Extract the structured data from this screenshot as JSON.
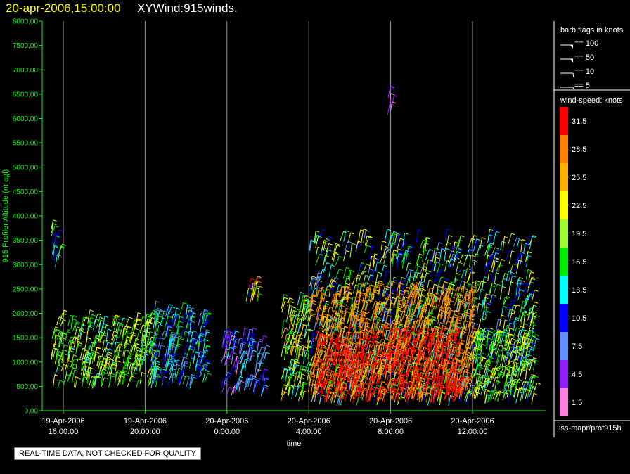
{
  "header": {
    "date": "20-apr-2006,15:00:00",
    "title": "XYWind:915winds."
  },
  "quality_notice": "REAL-TIME DATA, NOT CHECKED FOR QUALITY",
  "colors": {
    "background": "#000000",
    "axis": "#00ff00",
    "title_date": "#ffff00",
    "grid": "#9a9a9a"
  },
  "chart_data": {
    "type": "wind-barb time-height plot",
    "ylabel": "915 Profiler Altitude (m agl)",
    "xlabel": "time",
    "ylim": [
      0,
      8000
    ],
    "yticks": [
      "0.00",
      "500.00",
      "1000.00",
      "1500.00",
      "2000.00",
      "2500.00",
      "3000.00",
      "3500.00",
      "4000.00",
      "4500.00",
      "5000.00",
      "5500.00",
      "6000.00",
      "6500.00",
      "7000.00",
      "7500.00",
      "8000.00"
    ],
    "xlim_hours": [
      -6.5,
      25
    ],
    "xticks": [
      {
        "hours": -8,
        "date": "19-Apr-2006",
        "time": "16:00:00"
      },
      {
        "hours": -4,
        "date": "19-Apr-2006",
        "time": "20:00:00"
      },
      {
        "hours": 0,
        "date": "20-Apr-2006",
        "time": "0:00:00"
      },
      {
        "hours": 4,
        "date": "20-Apr-2006",
        "time": "4:00:00"
      },
      {
        "hours": 8,
        "date": "20-Apr-2006",
        "time": "8:00:00"
      },
      {
        "hours": 12,
        "date": "20-Apr-2006",
        "time": "12:00:00"
      }
    ],
    "barb_legend": {
      "title": "barb flags in knots",
      "entries": [
        {
          "label": "== 100",
          "knots": 100
        },
        {
          "label": "== 50",
          "knots": 50
        },
        {
          "label": "== 10",
          "knots": 10
        },
        {
          "label": "== 5",
          "knots": 5
        }
      ]
    },
    "speed_legend": {
      "title": "wind-speed: knots",
      "bins": [
        {
          "label": "31.5",
          "color": "#ff0000"
        },
        {
          "label": "28.5",
          "color": "#ff8000"
        },
        {
          "label": "25.5",
          "color": "#ffb000"
        },
        {
          "label": "22.5",
          "color": "#ffff00"
        },
        {
          "label": "19.5",
          "color": "#a0ff30"
        },
        {
          "label": "16.5",
          "color": "#00ee00"
        },
        {
          "label": "13.5",
          "color": "#00ffff"
        },
        {
          "label": "10.5",
          "color": "#0000ff"
        },
        {
          "label": "7.5",
          "color": "#6090ff"
        },
        {
          "label": "4.5",
          "color": "#9020ff"
        },
        {
          "label": "1.5",
          "color": "#ff80e0"
        }
      ]
    },
    "source": "iss-mapr/prof915h",
    "data_regions": [
      {
        "t_start": -8.6,
        "t_end": -8.2,
        "alt_min": 2900,
        "alt_max": 3800,
        "speed_min": 8,
        "speed_max": 20
      },
      {
        "t_start": -8.6,
        "t_end": -3.5,
        "alt_min": 450,
        "alt_max": 1800,
        "speed_min": 14,
        "speed_max": 24
      },
      {
        "t_start": -3.8,
        "t_end": -1.0,
        "alt_min": 450,
        "alt_max": 2000,
        "speed_min": 6,
        "speed_max": 18
      },
      {
        "t_start": -0.3,
        "t_end": 1.8,
        "alt_min": 300,
        "alt_max": 1500,
        "speed_min": 2,
        "speed_max": 14
      },
      {
        "t_start": 0.8,
        "t_end": 1.6,
        "alt_min": 2200,
        "alt_max": 2600,
        "speed_min": 8,
        "speed_max": 32
      },
      {
        "t_start": 2.6,
        "t_end": 4.0,
        "alt_min": 200,
        "alt_max": 2200,
        "speed_min": 12,
        "speed_max": 26
      },
      {
        "t_start": 4.0,
        "t_end": 15.0,
        "alt_min": 100,
        "alt_max": 3500,
        "speed_min": 8,
        "speed_max": 24
      },
      {
        "t_start": 4.0,
        "t_end": 12.0,
        "alt_min": 150,
        "alt_max": 2400,
        "speed_min": 24,
        "speed_max": 30
      },
      {
        "t_start": 4.2,
        "t_end": 11.5,
        "alt_min": 150,
        "alt_max": 1500,
        "speed_min": 30,
        "speed_max": 34
      },
      {
        "t_start": 12.0,
        "t_end": 15.0,
        "alt_min": 200,
        "alt_max": 1500,
        "speed_min": 14,
        "speed_max": 24
      },
      {
        "t_start": 7.8,
        "t_end": 8.1,
        "alt_min": 6000,
        "alt_max": 6500,
        "speed_min": 2,
        "speed_max": 6
      }
    ]
  }
}
